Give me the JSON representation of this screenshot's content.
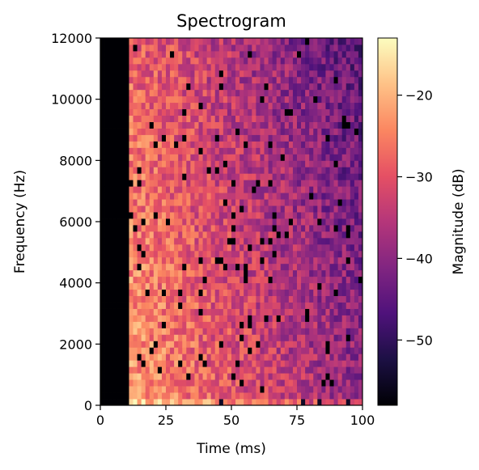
{
  "chart_data": {
    "type": "heatmap",
    "title": "Spectrogram",
    "xlabel": "Time (ms)",
    "ylabel": "Frequency (Hz)",
    "xlim": [
      0,
      100
    ],
    "ylim": [
      0,
      12000
    ],
    "x_ticks": [
      0,
      25,
      50,
      75,
      100
    ],
    "x_tick_labels": [
      "0",
      "25",
      "50",
      "75",
      "100"
    ],
    "y_ticks": [
      0,
      2000,
      4000,
      6000,
      8000,
      10000,
      12000
    ],
    "y_tick_labels": [
      "0",
      "2000",
      "4000",
      "6000",
      "8000",
      "10000",
      "12000"
    ],
    "colormap": "magma",
    "colorbar": {
      "label": "Magnitude (dB)",
      "range": [
        -58,
        -13
      ],
      "ticks": [
        -20,
        -30,
        -40,
        -50
      ],
      "tick_labels": [
        "−20",
        "−30",
        "−40",
        "−50"
      ]
    },
    "grid": false,
    "time_bins": 64,
    "freq_bins": 57,
    "time_bin_width_ms": 1.5625,
    "freq_bin_width_hz": 210.5,
    "silent_until_ms": 11,
    "silent_level_db": -58,
    "onset_level_db": -22,
    "time_decay_db_per_ms": 0.2,
    "freq_decay_db_per_khz": 0.5,
    "variation_db": 6
  },
  "colors": {
    "axis": "#000000",
    "background": "#ffffff"
  }
}
